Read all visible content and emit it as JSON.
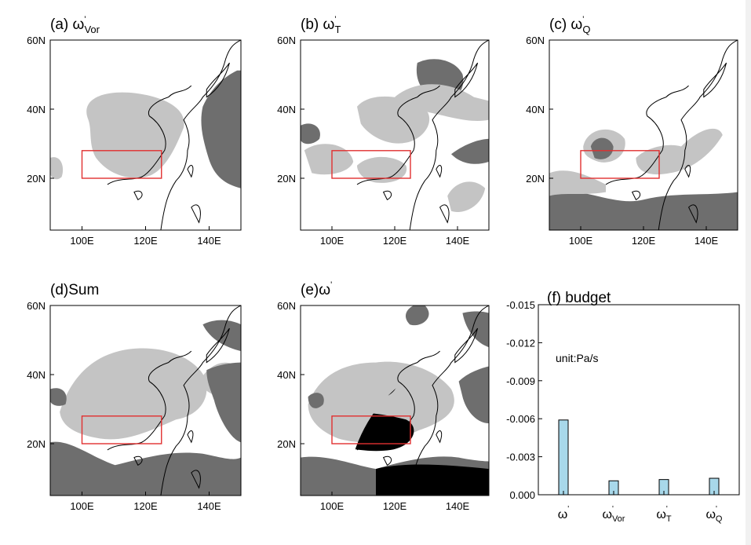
{
  "map_panels": [
    {
      "label": "(a) ω",
      "sub": "Vor",
      "sup": "'"
    },
    {
      "label": "(b) ω",
      "sub": "T",
      "sup": "'"
    },
    {
      "label": "(c) ω",
      "sub": "Q",
      "sup": "'"
    },
    {
      "label": "(d)Sum",
      "sub": "",
      "sup": ""
    },
    {
      "label": "(e)ω",
      "sub": "",
      "sup": "'"
    }
  ],
  "map_axes": {
    "lat_ticks": [
      "60N",
      "40N",
      "20N"
    ],
    "lon_ticks": [
      "100E",
      "120E",
      "140E"
    ],
    "lon_range": [
      90,
      150
    ],
    "lat_range": [
      5,
      60
    ],
    "box": {
      "lon": [
        100,
        125
      ],
      "lat": [
        20,
        28
      ],
      "color": "#e03030"
    }
  },
  "colors": {
    "light_shade": "#c4c4c4",
    "dark_shade": "#6e6e6e",
    "contour": "#000000",
    "bar_fill": "#a8d8ea"
  },
  "chart_data": {
    "type": "bar",
    "title": "(f) budget",
    "annotation": "unit:Pa/s",
    "categories": [
      {
        "base": "ω",
        "sub": "",
        "sup": "'"
      },
      {
        "base": "ω",
        "sub": "Vor",
        "sup": "'"
      },
      {
        "base": "ω",
        "sub": "T",
        "sup": "'"
      },
      {
        "base": "ω",
        "sub": "Q",
        "sup": "'"
      }
    ],
    "values": [
      -0.0059,
      -0.0011,
      -0.0012,
      -0.0013
    ],
    "ylim": [
      0.0,
      -0.015
    ],
    "y_reversed": true,
    "yticks": [
      "-0.015",
      "-0.012",
      "-0.009",
      "-0.006",
      "-0.003",
      "0.000"
    ],
    "ytick_values": [
      -0.015,
      -0.012,
      -0.009,
      -0.006,
      -0.003,
      0.0
    ],
    "grid": false
  }
}
